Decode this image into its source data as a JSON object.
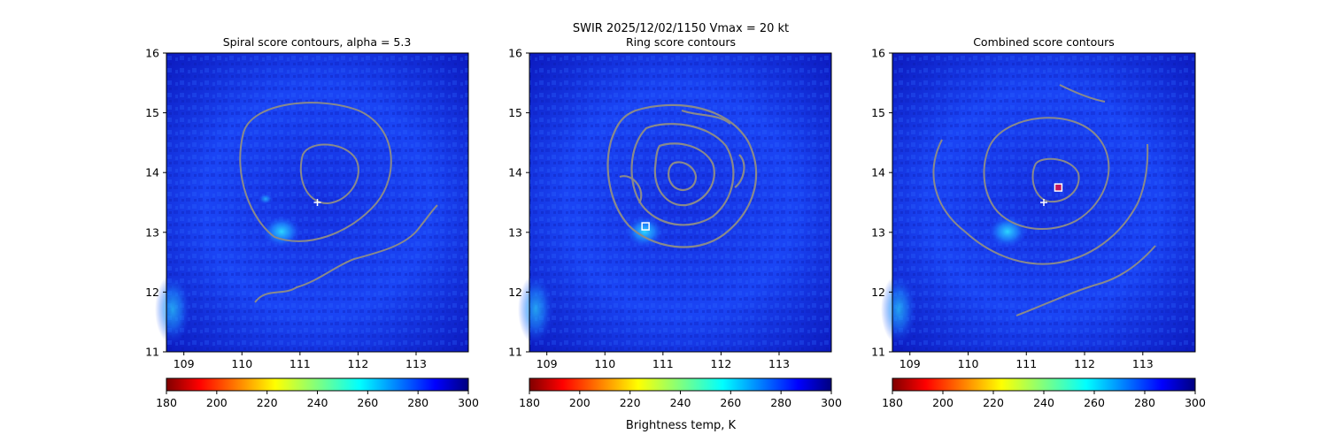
{
  "figure": {
    "suptitle": "SWIR  2025/12/02/1150    Vmax = 20 kt",
    "colorbar_label": "Brightness temp, K",
    "colors": {
      "background_field": "#1a3cf0",
      "contour": "#8a8a8a",
      "marker": "#ffffff",
      "combined_marker_fill": "#c2185b"
    }
  },
  "chart_data": [
    {
      "type": "heatmap",
      "title": "Spiral score contours, alpha =  5.3",
      "xlim": [
        108.7,
        113.9
      ],
      "ylim": [
        11,
        16
      ],
      "xticks": [
        "109",
        "110",
        "111",
        "112",
        "113"
      ],
      "yticks": [
        "11",
        "12",
        "13",
        "14",
        "15",
        "16"
      ],
      "center_marker": {
        "lon": 111.3,
        "lat": 13.5
      },
      "colorbar": {
        "min": 180,
        "max": 300,
        "ticks": [
          "180",
          "200",
          "220",
          "240",
          "260",
          "280",
          "300"
        ],
        "colormap": "jet_r"
      }
    },
    {
      "type": "heatmap",
      "title": "Ring score contours",
      "xlim": [
        108.7,
        113.9
      ],
      "ylim": [
        11,
        16
      ],
      "xticks": [
        "109",
        "110",
        "111",
        "112",
        "113"
      ],
      "yticks": [
        "11",
        "12",
        "13",
        "14",
        "15",
        "16"
      ],
      "ring_marker": {
        "lon": 110.7,
        "lat": 13.1
      },
      "colorbar": {
        "min": 180,
        "max": 300,
        "ticks": [
          "180",
          "200",
          "220",
          "240",
          "260",
          "280",
          "300"
        ],
        "colormap": "jet_r"
      }
    },
    {
      "type": "heatmap",
      "title": "Combined score contours",
      "xlim": [
        108.7,
        113.9
      ],
      "ylim": [
        11,
        16
      ],
      "xticks": [
        "109",
        "110",
        "111",
        "112",
        "113"
      ],
      "yticks": [
        "11",
        "12",
        "13",
        "14",
        "15",
        "16"
      ],
      "center_marker": {
        "lon": 111.3,
        "lat": 13.5
      },
      "combined_marker": {
        "lon": 111.55,
        "lat": 13.75
      },
      "colorbar": {
        "min": 180,
        "max": 300,
        "ticks": [
          "180",
          "200",
          "220",
          "240",
          "260",
          "280",
          "300"
        ],
        "colormap": "jet_r"
      }
    }
  ]
}
